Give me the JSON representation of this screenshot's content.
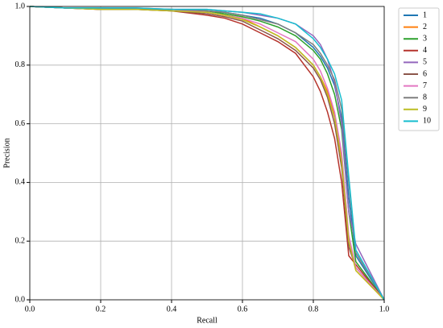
{
  "chart_data": {
    "type": "line",
    "xlabel": "Recall",
    "ylabel": "Precision",
    "x": [
      0,
      0.1,
      0.2,
      0.3,
      0.4,
      0.5,
      0.55,
      0.6,
      0.65,
      0.7,
      0.75,
      0.8,
      0.82,
      0.84,
      0.86,
      0.88,
      0.9,
      0.92,
      1.0
    ],
    "xlim": [
      0,
      1
    ],
    "ylim": [
      0,
      1
    ],
    "xticks": [
      {
        "value": 0,
        "label": "0.0"
      },
      0.2,
      0.4,
      0.6,
      0.8,
      {
        "value": 1,
        "label": "1.0"
      }
    ],
    "yticks": [
      {
        "value": 0,
        "label": "0.0"
      },
      0.2,
      0.4,
      0.6,
      0.8,
      {
        "value": 1,
        "label": "1.0"
      }
    ],
    "grid": true,
    "legend": "outside-upper-right",
    "series": [
      {
        "name": "1",
        "color": "#1f77b4",
        "values": [
          1,
          0.995,
          0.995,
          0.99,
          0.99,
          0.985,
          0.98,
          0.97,
          0.96,
          0.94,
          0.91,
          0.86,
          0.83,
          0.79,
          0.73,
          0.62,
          0.35,
          0.15,
          0
        ]
      },
      {
        "name": "2",
        "color": "#ff7f0e",
        "values": [
          1,
          0.995,
          0.99,
          0.99,
          0.99,
          0.98,
          0.97,
          0.96,
          0.93,
          0.9,
          0.86,
          0.8,
          0.76,
          0.71,
          0.63,
          0.48,
          0.2,
          0.1,
          0
        ]
      },
      {
        "name": "3",
        "color": "#2ca02c",
        "values": [
          1,
          0.995,
          0.995,
          0.99,
          0.99,
          0.985,
          0.975,
          0.965,
          0.95,
          0.93,
          0.9,
          0.85,
          0.82,
          0.77,
          0.7,
          0.58,
          0.3,
          0.13,
          0
        ]
      },
      {
        "name": "4",
        "color": "#b5332b",
        "values": [
          1,
          0.995,
          0.99,
          0.99,
          0.985,
          0.97,
          0.96,
          0.94,
          0.91,
          0.88,
          0.84,
          0.76,
          0.71,
          0.64,
          0.55,
          0.4,
          0.15,
          0.12,
          0
        ]
      },
      {
        "name": "5",
        "color": "#9467bd",
        "values": [
          1,
          0.995,
          0.995,
          0.995,
          0.99,
          0.99,
          0.985,
          0.98,
          0.97,
          0.96,
          0.94,
          0.9,
          0.87,
          0.82,
          0.74,
          0.6,
          0.3,
          0.19,
          0
        ]
      },
      {
        "name": "6",
        "color": "#8c564b",
        "values": [
          1,
          0.995,
          0.99,
          0.99,
          0.985,
          0.975,
          0.965,
          0.95,
          0.92,
          0.89,
          0.85,
          0.79,
          0.75,
          0.69,
          0.6,
          0.45,
          0.18,
          0.11,
          0
        ]
      },
      {
        "name": "7",
        "color": "#e377c2",
        "values": [
          1,
          0.995,
          0.995,
          0.99,
          0.99,
          0.98,
          0.97,
          0.96,
          0.94,
          0.91,
          0.88,
          0.82,
          0.78,
          0.72,
          0.64,
          0.5,
          0.22,
          0.11,
          0
        ]
      },
      {
        "name": "8",
        "color": "#7f7f7f",
        "values": [
          1,
          0.995,
          0.995,
          0.99,
          0.99,
          0.985,
          0.98,
          0.97,
          0.955,
          0.94,
          0.91,
          0.87,
          0.84,
          0.8,
          0.75,
          0.65,
          0.4,
          0.16,
          0
        ]
      },
      {
        "name": "9",
        "color": "#bcbd22",
        "values": [
          1,
          0.995,
          0.99,
          0.99,
          0.985,
          0.98,
          0.97,
          0.955,
          0.93,
          0.9,
          0.86,
          0.8,
          0.76,
          0.7,
          0.62,
          0.47,
          0.2,
          0.1,
          0
        ]
      },
      {
        "name": "10",
        "color": "#17becf",
        "values": [
          1,
          0.995,
          0.995,
          0.995,
          0.99,
          0.99,
          0.985,
          0.98,
          0.975,
          0.96,
          0.94,
          0.89,
          0.86,
          0.82,
          0.77,
          0.68,
          0.42,
          0.17,
          0
        ]
      }
    ]
  }
}
